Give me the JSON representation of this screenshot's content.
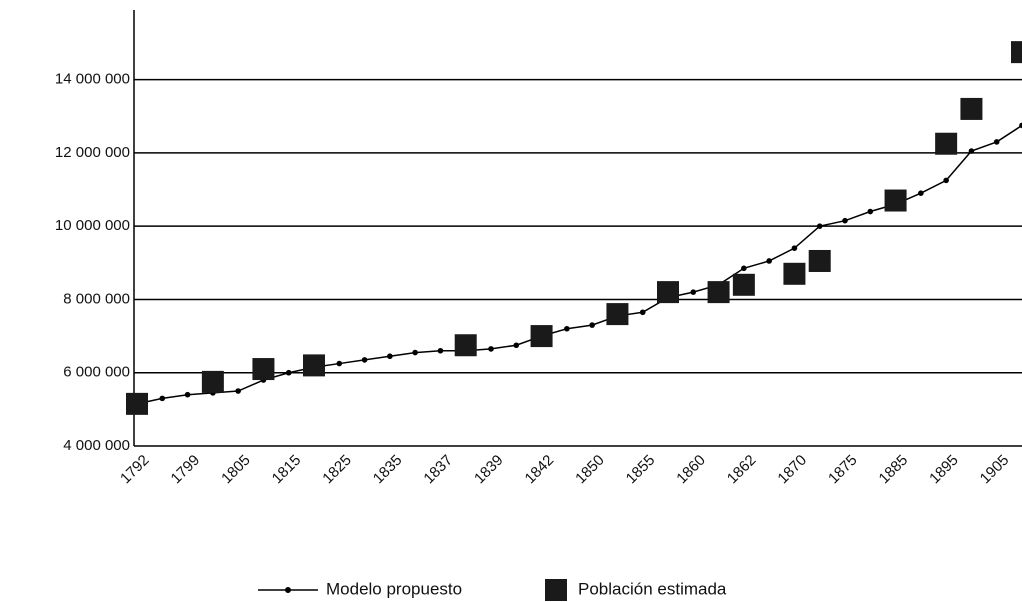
{
  "chart_data": {
    "type": "line",
    "categories": [
      "1792",
      null,
      "1799",
      null,
      "1805",
      null,
      "1815",
      null,
      "1825",
      null,
      "1835",
      null,
      "1837",
      null,
      "1839",
      null,
      "1842",
      null,
      "1850",
      null,
      "1855",
      null,
      "1860",
      null,
      "1862",
      null,
      "1870",
      null,
      "1875",
      null,
      "1885",
      null,
      "1895",
      null,
      "1905",
      null
    ],
    "series": [
      {
        "name": "Modelo propuesto",
        "color": "#000000",
        "marker": "dot",
        "values": [
          5150000,
          5300000,
          5400000,
          5450000,
          5500000,
          5800000,
          6000000,
          6150000,
          6250000,
          6350000,
          6450000,
          6550000,
          6600000,
          6600000,
          6650000,
          6750000,
          7000000,
          7200000,
          7300000,
          7550000,
          7650000,
          8050000,
          8200000,
          8400000,
          8850000,
          9050000,
          9400000,
          10000000,
          10150000,
          10400000,
          10600000,
          10900000,
          11250000,
          12050000,
          12300000,
          12750000
        ]
      },
      {
        "name": "Población estimada",
        "color": "#1a1a1a",
        "marker": "square",
        "values": [
          5150000,
          null,
          null,
          5750000,
          null,
          6100000,
          null,
          6200000,
          null,
          null,
          null,
          null,
          null,
          6750000,
          null,
          null,
          7000000,
          null,
          null,
          7600000,
          null,
          8200000,
          null,
          8200000,
          8400000,
          null,
          8700000,
          9050000,
          null,
          null,
          10700000,
          null,
          12250000,
          13200000,
          null,
          14750000
        ]
      }
    ],
    "ylim": [
      4000000,
      15900000
    ],
    "yticks": [
      {
        "value": 4000000,
        "label": "4 000 000"
      },
      {
        "value": 6000000,
        "label": "6 000 000"
      },
      {
        "value": 8000000,
        "label": "8 000 000"
      },
      {
        "value": 10000000,
        "label": "10 000 000"
      },
      {
        "value": 12000000,
        "label": "12 000 000"
      },
      {
        "value": 14000000,
        "label": "14 000 000"
      }
    ],
    "grid": true,
    "legend": "bottom"
  }
}
